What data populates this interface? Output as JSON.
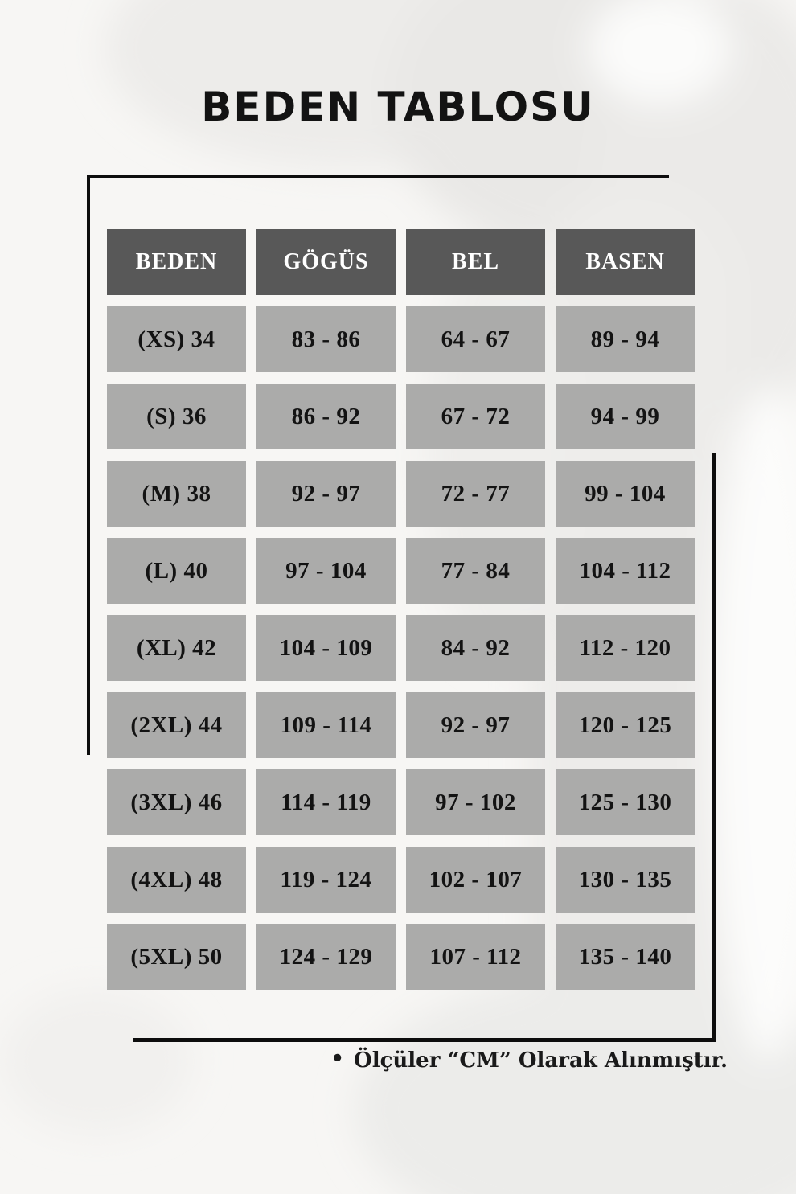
{
  "page": {
    "title": "BEDEN TABLOSU",
    "footnote_bullet": "•",
    "footnote_text": "Ölçüler “CM” Olarak Alınmıştır."
  },
  "colors": {
    "background": "#f7f6f4",
    "header_cell": "#585858",
    "data_cell": "#ababaa",
    "header_text": "#ffffff",
    "text": "#131313",
    "bracket_line": "#0d0d0d",
    "silhouette": "#eceae8"
  },
  "chart_data": {
    "type": "table",
    "title": "BEDEN TABLOSU",
    "unit": "CM",
    "columns": [
      "BEDEN",
      "GÖGÜS",
      "BEL",
      "BASEN"
    ],
    "rows": [
      [
        "(XS) 34",
        "83 - 86",
        "64 - 67",
        "89 - 94"
      ],
      [
        "(S) 36",
        "86 - 92",
        "67 - 72",
        "94 - 99"
      ],
      [
        "(M) 38",
        "92 - 97",
        "72 - 77",
        "99 - 104"
      ],
      [
        "(L) 40",
        "97 - 104",
        "77 - 84",
        "104 - 112"
      ],
      [
        "(XL) 42",
        "104 - 109",
        "84 - 92",
        "112 - 120"
      ],
      [
        "(2XL) 44",
        "109 - 114",
        "92 - 97",
        "120 - 125"
      ],
      [
        "(3XL) 46",
        "114 - 119",
        "97 - 102",
        "125 - 130"
      ],
      [
        "(4XL) 48",
        "119 - 124",
        "102 - 107",
        "130 - 135"
      ],
      [
        "(5XL) 50",
        "124 - 129",
        "107 - 112",
        "135 - 140"
      ]
    ]
  }
}
